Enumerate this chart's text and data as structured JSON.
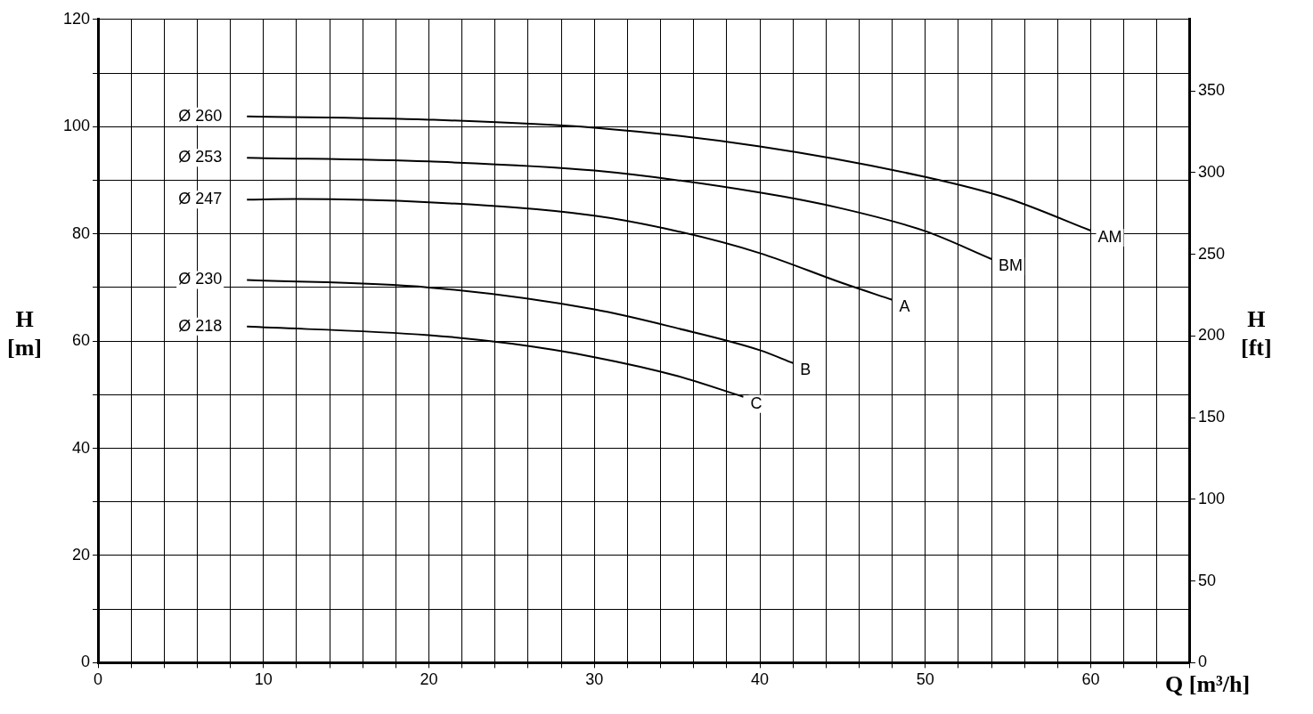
{
  "chart_data": {
    "type": "line",
    "xlabel": "Q [m³/h]",
    "ylabel": "H [m]",
    "y2label": "H [ft]",
    "xlim": [
      0,
      66
    ],
    "xticks": [
      0,
      {
        "value": 2,
        "label": null
      },
      {
        "value": 4,
        "label": null
      },
      {
        "value": 6,
        "label": null
      },
      {
        "value": 8,
        "label": null
      },
      10,
      {
        "value": 12,
        "label": null
      },
      {
        "value": 14,
        "label": null
      },
      {
        "value": 16,
        "label": null
      },
      {
        "value": 18,
        "label": null
      },
      20,
      {
        "value": 22,
        "label": null
      },
      {
        "value": 24,
        "label": null
      },
      {
        "value": 26,
        "label": null
      },
      {
        "value": 28,
        "label": null
      },
      30,
      {
        "value": 32,
        "label": null
      },
      {
        "value": 34,
        "label": null
      },
      {
        "value": 36,
        "label": null
      },
      {
        "value": 38,
        "label": null
      },
      40,
      {
        "value": 42,
        "label": null
      },
      {
        "value": 44,
        "label": null
      },
      {
        "value": 46,
        "label": null
      },
      {
        "value": 48,
        "label": null
      },
      50,
      {
        "value": 52,
        "label": null
      },
      {
        "value": 54,
        "label": null
      },
      {
        "value": 56,
        "label": null
      },
      {
        "value": 58,
        "label": null
      },
      60,
      {
        "value": 62,
        "label": null
      },
      {
        "value": 64,
        "label": null
      },
      {
        "value": 66,
        "label": null
      }
    ],
    "ylim": [
      0,
      120
    ],
    "yticks": [
      0,
      {
        "value": 10,
        "label": null
      },
      20,
      {
        "value": 30,
        "label": null
      },
      40,
      {
        "value": 50,
        "label": null
      },
      60,
      {
        "value": 70,
        "label": null
      },
      80,
      {
        "value": 90,
        "label": null
      },
      100,
      {
        "value": 110,
        "label": null
      },
      120
    ],
    "y2lim": [
      0,
      393.7
    ],
    "y2ticks": [
      0,
      50,
      100,
      150,
      200,
      250,
      300,
      350
    ],
    "grid": true,
    "legend": false,
    "marker": "none",
    "line_style": "solid",
    "series": [
      {
        "name": "Ø 260",
        "color": "#000000",
        "x": [
          9,
          20,
          30,
          40,
          50,
          55,
          60
        ],
        "values": [
          101.9,
          101.3,
          99.8,
          96.3,
          90.6,
          86.6,
          80.6
        ]
      },
      {
        "name": "Ø 253",
        "color": "#000000",
        "x": [
          9,
          20,
          30,
          40,
          45,
          50,
          54
        ],
        "values": [
          94.2,
          93.5,
          91.8,
          87.7,
          84.7,
          80.5,
          75.3
        ]
      },
      {
        "name": "Ø 247",
        "color": "#000000",
        "x": [
          9,
          12,
          20,
          30,
          35,
          40,
          45,
          48
        ],
        "values": [
          86.4,
          86.5,
          85.9,
          83.4,
          80.5,
          76.4,
          70.8,
          67.7
        ]
      },
      {
        "name": "Ø 230",
        "color": "#000000",
        "x": [
          9,
          20,
          30,
          35,
          40,
          42
        ],
        "values": [
          71.4,
          70.0,
          65.9,
          62.4,
          58.3,
          55.9
        ]
      },
      {
        "name": "Ø 218",
        "color": "#000000",
        "x": [
          9,
          20,
          25,
          30,
          35,
          39
        ],
        "values": [
          62.7,
          61.1,
          59.5,
          57.0,
          53.5,
          49.6
        ]
      }
    ],
    "annotations": [
      {
        "text": "AM",
        "x": 60,
        "y": 80.6
      },
      {
        "text": "BM",
        "x": 54,
        "y": 75.3
      },
      {
        "text": "A",
        "x": 48,
        "y": 67.7
      },
      {
        "text": "B",
        "x": 42,
        "y": 55.9
      },
      {
        "text": "C",
        "x": 39,
        "y": 49.6
      }
    ]
  }
}
